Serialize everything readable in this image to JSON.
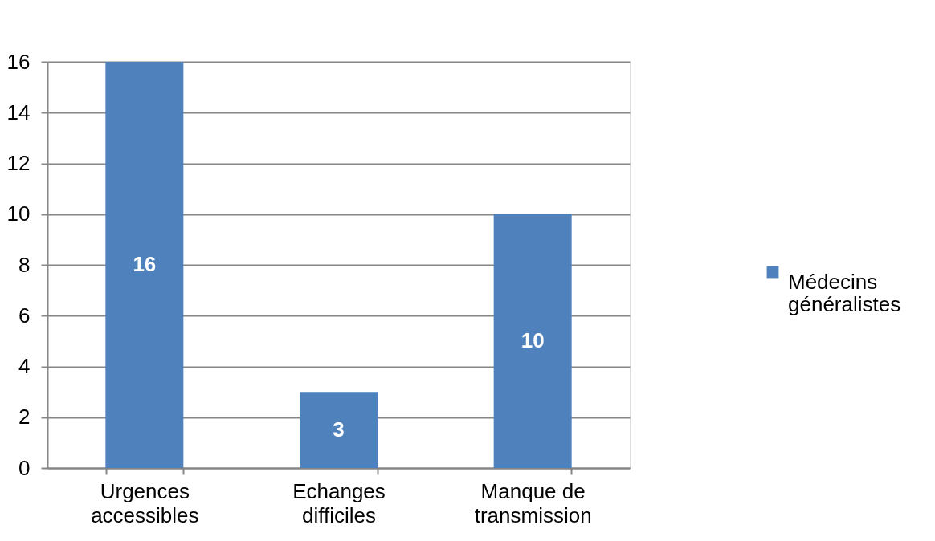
{
  "chart_data": {
    "type": "bar",
    "categories": [
      "Urgences accessibles",
      "Echanges difficiles",
      "Manque de transmission"
    ],
    "series": [
      {
        "name": "Médecins généralistes",
        "color": "#4f81bd",
        "values": [
          16,
          3,
          10
        ]
      }
    ],
    "ylim": [
      0,
      16
    ],
    "yticks": [
      0,
      2,
      4,
      6,
      8,
      10,
      12,
      14,
      16
    ],
    "grid": "y",
    "legend": "right",
    "data_labels": true
  }
}
